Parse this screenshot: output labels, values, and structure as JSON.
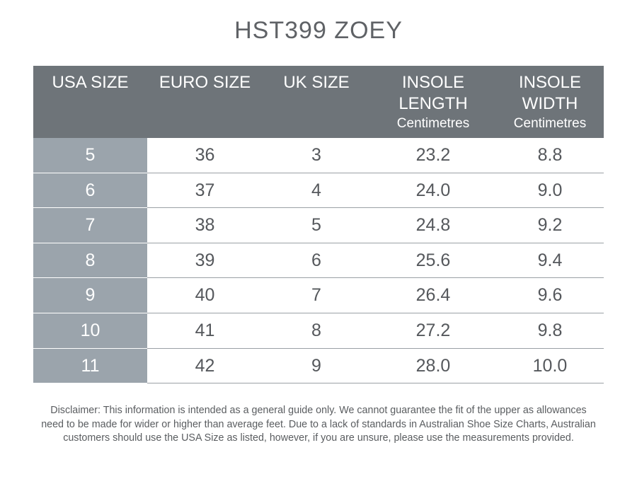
{
  "title": "HST399 ZOEY",
  "table": {
    "header": [
      {
        "lines": [
          "USA SIZE"
        ]
      },
      {
        "lines": [
          "EURO SIZE"
        ]
      },
      {
        "lines": [
          "UK SIZE"
        ]
      },
      {
        "lines": [
          "INSOLE",
          "LENGTH"
        ],
        "unit": "Centimetres"
      },
      {
        "lines": [
          "INSOLE",
          "WIDTH"
        ],
        "unit": "Centimetres"
      }
    ],
    "rows": [
      [
        "5",
        "36",
        "3",
        "23.2",
        "8.8"
      ],
      [
        "6",
        "37",
        "4",
        "24.0",
        "9.0"
      ],
      [
        "7",
        "38",
        "5",
        "24.8",
        "9.2"
      ],
      [
        "8",
        "39",
        "6",
        "25.6",
        "9.4"
      ],
      [
        "9",
        "40",
        "7",
        "26.4",
        "9.6"
      ],
      [
        "10",
        "41",
        "8",
        "27.2",
        "9.8"
      ],
      [
        "11",
        "42",
        "9",
        "28.0",
        "10.0"
      ]
    ]
  },
  "disclaimer": [
    "Disclaimer: This information is intended as a general guide only. We cannot guarantee the fit of the upper as allowances",
    "need to be made for wider or higher than average feet. Due to a lack of standards in Australian Shoe Size Charts, Australian",
    "customers should use the USA Size as listed, however, if you are unsure, please use the measurements provided."
  ]
}
